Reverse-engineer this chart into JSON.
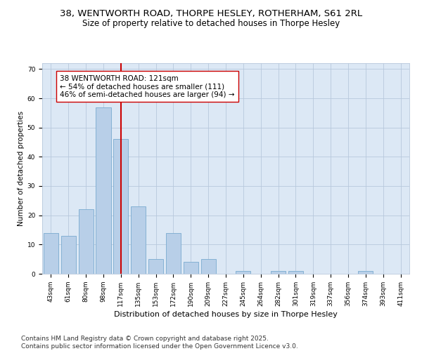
{
  "title1": "38, WENTWORTH ROAD, THORPE HESLEY, ROTHERHAM, S61 2RL",
  "title2": "Size of property relative to detached houses in Thorpe Hesley",
  "xlabel": "Distribution of detached houses by size in Thorpe Hesley",
  "ylabel": "Number of detached properties",
  "categories": [
    "43sqm",
    "61sqm",
    "80sqm",
    "98sqm",
    "117sqm",
    "135sqm",
    "153sqm",
    "172sqm",
    "190sqm",
    "209sqm",
    "227sqm",
    "245sqm",
    "264sqm",
    "282sqm",
    "301sqm",
    "319sqm",
    "337sqm",
    "356sqm",
    "374sqm",
    "393sqm",
    "411sqm"
  ],
  "values": [
    14,
    13,
    22,
    57,
    46,
    23,
    5,
    14,
    4,
    5,
    0,
    1,
    0,
    1,
    1,
    0,
    0,
    0,
    1,
    0,
    0
  ],
  "bar_color": "#b8cfe8",
  "bar_edge_color": "#7aaad0",
  "vline_index": 4,
  "vline_color": "#cc0000",
  "annotation_text": "38 WENTWORTH ROAD: 121sqm\n← 54% of detached houses are smaller (111)\n46% of semi-detached houses are larger (94) →",
  "annotation_box_color": "#ffffff",
  "annotation_box_edge": "#cc0000",
  "ylim": [
    0,
    72
  ],
  "yticks": [
    0,
    10,
    20,
    30,
    40,
    50,
    60,
    70
  ],
  "bg_color": "#dce8f5",
  "footer": "Contains HM Land Registry data © Crown copyright and database right 2025.\nContains public sector information licensed under the Open Government Licence v3.0.",
  "title1_fontsize": 9.5,
  "title2_fontsize": 8.5,
  "annot_fontsize": 7.5,
  "footer_fontsize": 6.5,
  "xlabel_fontsize": 8,
  "ylabel_fontsize": 7.5,
  "tick_fontsize": 6.5
}
